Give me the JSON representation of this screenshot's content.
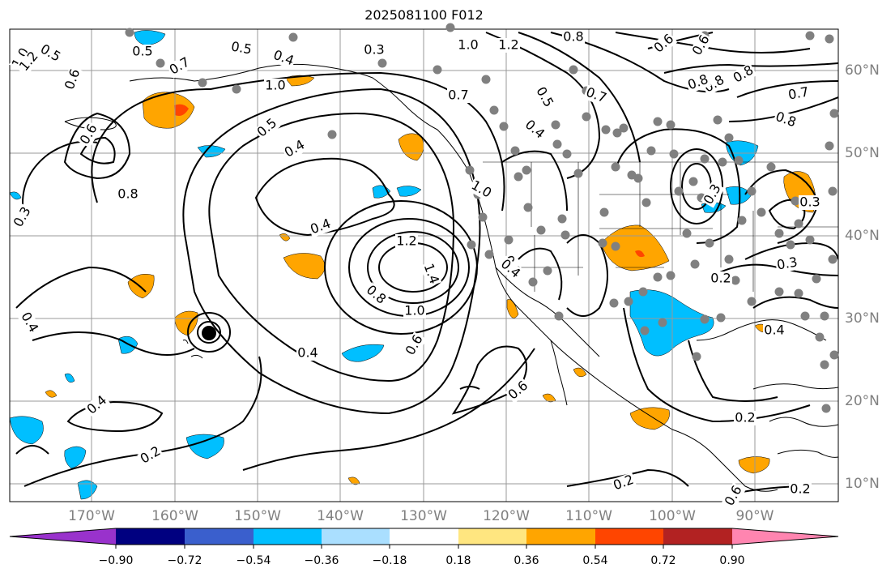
{
  "title": "2025081100 F012",
  "map": {
    "lat_labels": [
      "60°N",
      "50°N",
      "40°N",
      "30°N",
      "20°N",
      "10°N"
    ],
    "lon_labels": [
      "170°W",
      "160°W",
      "150°W",
      "140°W",
      "130°W",
      "120°W",
      "110°W",
      "100°W",
      "90°W"
    ],
    "gridlines": true,
    "contour_labels": [
      "1.0",
      "1.2",
      "0.5",
      "0.6",
      "0.5",
      "0.7",
      "0.5",
      "0.4",
      "0.3",
      "1.0",
      "1.2",
      "0.8",
      "0.6",
      "0.6",
      "0.8",
      "0.8",
      "1.0",
      "0.5",
      "0.7",
      "0.5",
      "0.4",
      "0.7",
      "0.8",
      "0.6",
      "0.4",
      "0.8",
      "0.7",
      "0.8",
      "0.4",
      "1.2",
      "1.4",
      "0.8",
      "1.0",
      "0.6",
      "0.4",
      "0.6",
      "0.4",
      "0.2",
      "0.2",
      "0.6",
      "0.2",
      "0.4",
      "0.3",
      "0.3",
      "0.2",
      "0.4",
      "0.3",
      "0.2",
      "0.2",
      "0.4",
      "1.0",
      "0.3"
    ],
    "hurricane_marker": "storm-center-icon",
    "colors": {
      "contour": "#000000",
      "coast": "#000000",
      "grid": "#999999",
      "station_dot": "#808080",
      "axis_label": "#808080"
    }
  },
  "colorbar": {
    "ticks": [
      "−0.90",
      "−0.72",
      "−0.54",
      "−0.36",
      "−0.18",
      "0.18",
      "0.36",
      "0.54",
      "0.72",
      "0.90"
    ],
    "colors": [
      "#9932cc",
      "#000080",
      "#3a5fcd",
      "#00bfff",
      "#aadfff",
      "#ffffff",
      "#ffe680",
      "#ffa500",
      "#ff4500",
      "#b22222",
      "#ff85b0"
    ]
  }
}
